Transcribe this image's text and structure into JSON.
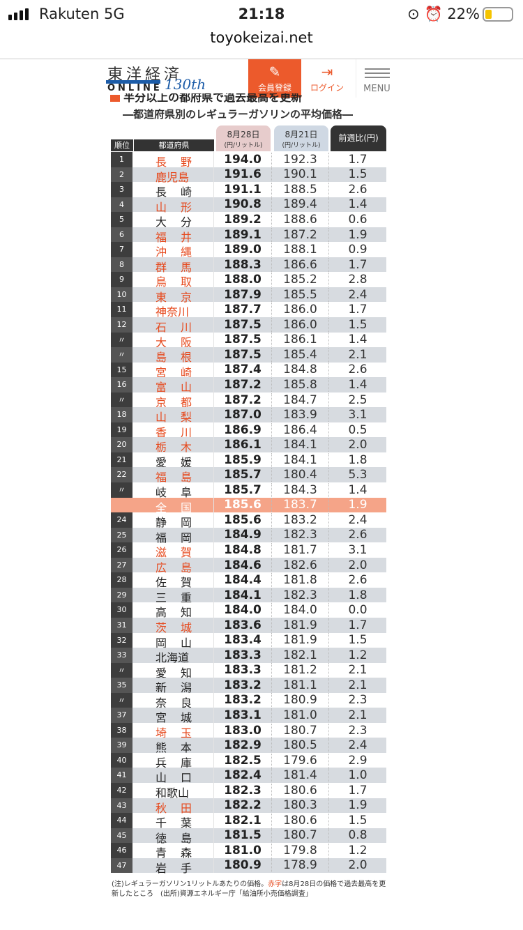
{
  "status_bar": {
    "carrier": "Rakuten  5G",
    "time": "21:18",
    "battery": "22%",
    "battery_level": 0.22
  },
  "browser": {
    "url": "toyokeizai.net"
  },
  "site": {
    "logo_jp": "東洋経済",
    "logo_en": "ONLINE",
    "logo_anniv": "130th",
    "register": "会員登録",
    "login": "ログイン",
    "menu": "MENU",
    "accent": "#ec5a2c"
  },
  "article": {
    "title": "半分以上の都府県で過去最高を更新",
    "subtitle": "―都道府県別のレギュラーガソリンの平均価格―"
  },
  "table": {
    "headers": {
      "rank": "順位",
      "pref": "都道府県",
      "d1": "8月28日",
      "d1_unit": "(円/リットル)",
      "d2": "8月21日",
      "d2_unit": "(円/リットル)",
      "diff": "前週比(円)"
    },
    "highlight_color": "#e64a1e",
    "rows": [
      [
        "1",
        "長野",
        "194.0",
        "192.3",
        "1.7",
        true
      ],
      [
        "2",
        "鹿児島",
        "191.6",
        "190.1",
        "1.5",
        true
      ],
      [
        "3",
        "長崎",
        "191.1",
        "188.5",
        "2.6",
        false
      ],
      [
        "4",
        "山形",
        "190.8",
        "189.4",
        "1.4",
        true
      ],
      [
        "5",
        "大分",
        "189.2",
        "188.6",
        "0.6",
        false
      ],
      [
        "6",
        "福井",
        "189.1",
        "187.2",
        "1.9",
        true
      ],
      [
        "7",
        "沖縄",
        "189.0",
        "188.1",
        "0.9",
        true
      ],
      [
        "8",
        "群馬",
        "188.3",
        "186.6",
        "1.7",
        true
      ],
      [
        "9",
        "鳥取",
        "188.0",
        "185.2",
        "2.8",
        true
      ],
      [
        "10",
        "東京",
        "187.9",
        "185.5",
        "2.4",
        true
      ],
      [
        "11",
        "神奈川",
        "187.7",
        "186.0",
        "1.7",
        true
      ],
      [
        "12",
        "石川",
        "187.5",
        "186.0",
        "1.5",
        true
      ],
      [
        "〃",
        "大阪",
        "187.5",
        "186.1",
        "1.4",
        true
      ],
      [
        "〃",
        "島根",
        "187.5",
        "185.4",
        "2.1",
        true
      ],
      [
        "15",
        "宮崎",
        "187.4",
        "184.8",
        "2.6",
        true
      ],
      [
        "16",
        "富山",
        "187.2",
        "185.8",
        "1.4",
        true
      ],
      [
        "〃",
        "京都",
        "187.2",
        "184.7",
        "2.5",
        true
      ],
      [
        "18",
        "山梨",
        "187.0",
        "183.9",
        "3.1",
        true
      ],
      [
        "19",
        "香川",
        "186.9",
        "186.4",
        "0.5",
        true
      ],
      [
        "20",
        "栃木",
        "186.1",
        "184.1",
        "2.0",
        true
      ],
      [
        "21",
        "愛媛",
        "185.9",
        "184.1",
        "1.8",
        false
      ],
      [
        "22",
        "福島",
        "185.7",
        "180.4",
        "5.3",
        true
      ],
      [
        "〃",
        "岐阜",
        "185.7",
        "184.3",
        "1.4",
        false
      ],
      [
        "",
        "全国",
        "185.6",
        "183.7",
        "1.9",
        false,
        "national"
      ],
      [
        "24",
        "静岡",
        "185.6",
        "183.2",
        "2.4",
        false
      ],
      [
        "25",
        "福岡",
        "184.9",
        "182.3",
        "2.6",
        false
      ],
      [
        "26",
        "滋賀",
        "184.8",
        "181.7",
        "3.1",
        true
      ],
      [
        "27",
        "広島",
        "184.6",
        "182.6",
        "2.0",
        true
      ],
      [
        "28",
        "佐賀",
        "184.4",
        "181.8",
        "2.6",
        false
      ],
      [
        "29",
        "三重",
        "184.1",
        "182.3",
        "1.8",
        false
      ],
      [
        "30",
        "高知",
        "184.0",
        "184.0",
        "0.0",
        false
      ],
      [
        "31",
        "茨城",
        "183.6",
        "181.9",
        "1.7",
        true
      ],
      [
        "32",
        "岡山",
        "183.4",
        "181.9",
        "1.5",
        false
      ],
      [
        "33",
        "北海道",
        "183.3",
        "182.1",
        "1.2",
        false
      ],
      [
        "〃",
        "愛知",
        "183.3",
        "181.2",
        "2.1",
        false
      ],
      [
        "35",
        "新潟",
        "183.2",
        "181.1",
        "2.1",
        false
      ],
      [
        "〃",
        "奈良",
        "183.2",
        "180.9",
        "2.3",
        false
      ],
      [
        "37",
        "宮城",
        "183.1",
        "181.0",
        "2.1",
        false
      ],
      [
        "38",
        "埼玉",
        "183.0",
        "180.7",
        "2.3",
        true
      ],
      [
        "39",
        "熊本",
        "182.9",
        "180.5",
        "2.4",
        false
      ],
      [
        "40",
        "兵庫",
        "182.5",
        "179.6",
        "2.9",
        false
      ],
      [
        "41",
        "山口",
        "182.4",
        "181.4",
        "1.0",
        false
      ],
      [
        "42",
        "和歌山",
        "182.3",
        "180.6",
        "1.7",
        false
      ],
      [
        "43",
        "秋田",
        "182.2",
        "180.3",
        "1.9",
        true
      ],
      [
        "44",
        "千葉",
        "182.1",
        "180.6",
        "1.5",
        false
      ],
      [
        "45",
        "徳島",
        "181.5",
        "180.7",
        "0.8",
        false
      ],
      [
        "46",
        "青森",
        "181.0",
        "179.8",
        "1.2",
        false
      ],
      [
        "47",
        "岩手",
        "180.9",
        "178.9",
        "2.0",
        false
      ]
    ]
  },
  "note": {
    "pre": "(注)レギュラーガソリン1リットルあたりの価格。",
    "red": "赤字",
    "post": "は8月28日の価格で過去最高を更新したところ　(出所)資源エネルギー庁「給油所小売価格調査」"
  }
}
